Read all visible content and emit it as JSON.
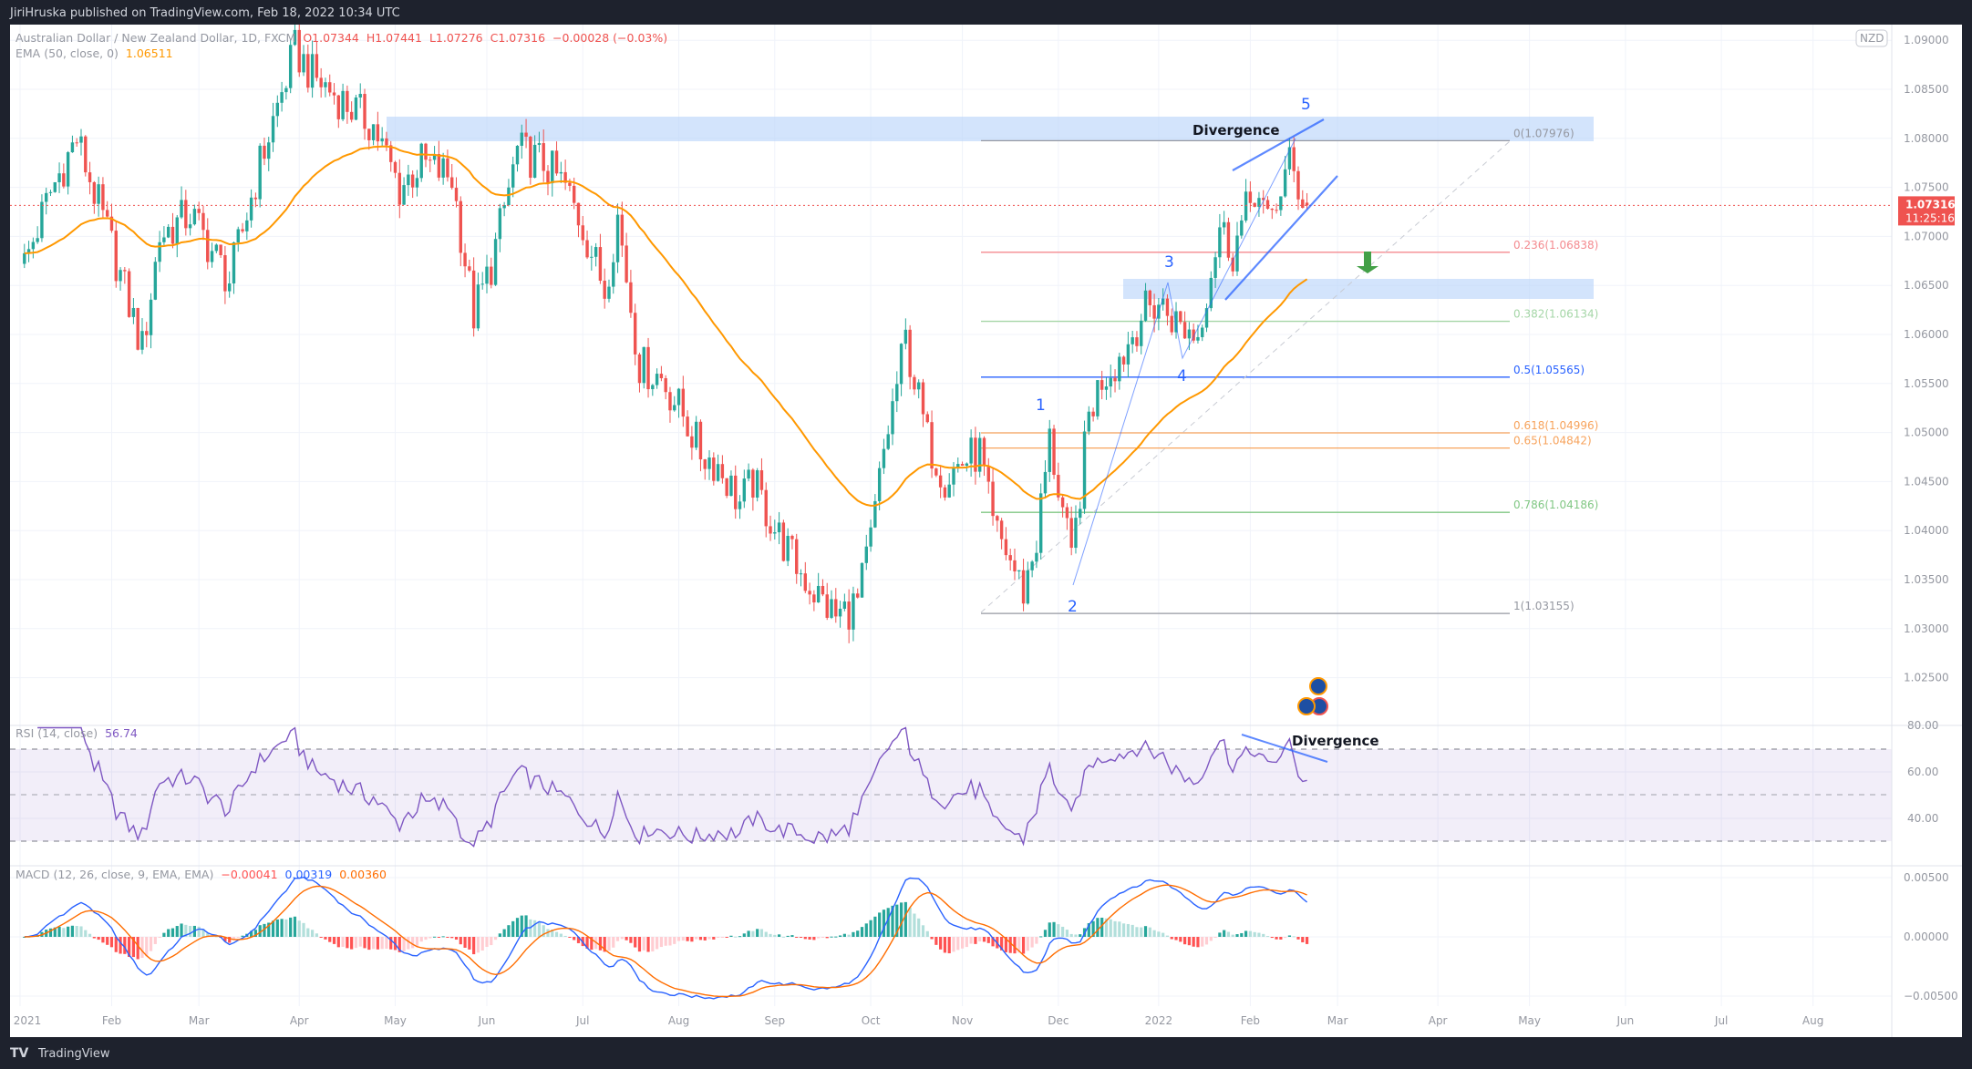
{
  "header": {
    "published": "JiriHruska published on TradingView.com, Feb 18, 2022 10:34 UTC"
  },
  "legend": {
    "symbol": "Australian Dollar / New Zealand Dollar, 1D, FXCM",
    "open": "O1.07344",
    "high": "H1.07441",
    "low": "L1.07276",
    "close": "C1.07316",
    "change": "−0.00028 (−0.03%)",
    "ema_label": "EMA (50, close, 0)",
    "ema_value": "1.06511"
  },
  "price_axis": {
    "currency": "NZD",
    "ticks": [
      "1.09000",
      "1.08500",
      "1.08000",
      "1.07500",
      "1.07000",
      "1.06500",
      "1.06000",
      "1.05500",
      "1.05000",
      "1.04500",
      "1.04000",
      "1.03500",
      "1.03000",
      "1.02500"
    ],
    "last_price": "1.07316",
    "countdown": "11:25:16"
  },
  "rsi": {
    "label": "RSI (14, close)",
    "value": "56.74",
    "ticks": [
      "80.00",
      "60.00",
      "40.00"
    ]
  },
  "macd": {
    "label": "MACD (12, 26, close, 9, EMA, EMA)",
    "hist": "−0.00041",
    "macd": "0.00319",
    "signal": "0.00360",
    "ticks": [
      "0.00500",
      "0.00000",
      "−0.00500"
    ]
  },
  "time_axis": [
    {
      "label": "2021",
      "date": "2021-01-01"
    },
    {
      "label": "Feb",
      "date": "2021-02-01"
    },
    {
      "label": "Mar",
      "date": "2021-03-01"
    },
    {
      "label": "Apr",
      "date": "2021-04-01"
    },
    {
      "label": "May",
      "date": "2021-05-03"
    },
    {
      "label": "Jun",
      "date": "2021-06-01"
    },
    {
      "label": "Jul",
      "date": "2021-07-01"
    },
    {
      "label": "Aug",
      "date": "2021-08-02"
    },
    {
      "label": "Sep",
      "date": "2021-09-01"
    },
    {
      "label": "Oct",
      "date": "2021-10-01"
    },
    {
      "label": "Nov",
      "date": "2021-11-01"
    },
    {
      "label": "Dec",
      "date": "2021-12-01"
    },
    {
      "label": "2022",
      "date": "2022-01-03"
    },
    {
      "label": "Feb",
      "date": "2022-02-01"
    },
    {
      "label": "Mar",
      "date": "2022-03-01"
    },
    {
      "label": "Apr",
      "date": "2022-04-01"
    },
    {
      "label": "May",
      "date": "2022-05-02"
    },
    {
      "label": "Jun",
      "date": "2022-06-01"
    },
    {
      "label": "Jul",
      "date": "2022-07-01"
    },
    {
      "label": "Aug",
      "date": "2022-08-01"
    }
  ],
  "fib_levels": [
    {
      "label": "0(1.07976)",
      "price": 1.07976,
      "color": "#9598a1"
    },
    {
      "label": "0.236(1.06838)",
      "price": 1.06838,
      "color": "#f48a8f"
    },
    {
      "label": "0.382(1.06134)",
      "price": 1.06134,
      "color": "#a5d6a7"
    },
    {
      "label": "0.5(1.05565)",
      "price": 1.05565,
      "color": "#2962ff"
    },
    {
      "label": "0.618(1.04996)",
      "price": 1.04996,
      "color": "#f7a35c"
    },
    {
      "label": "0.65(1.04842)",
      "price": 1.04842,
      "color": "#f7a35c"
    },
    {
      "label": "0.786(1.04186)",
      "price": 1.04186,
      "color": "#81c784"
    },
    {
      "label": "1(1.03155)",
      "price": 1.03155,
      "color": "#9598a1"
    }
  ],
  "annotations": {
    "divergence_main": "Divergence",
    "divergence_rsi": "Divergence",
    "waves": [
      "1",
      "2",
      "3",
      "4",
      "5"
    ]
  },
  "footer": {
    "brand": "TradingView"
  },
  "colors": {
    "up": "#26a69a",
    "down": "#ef5350",
    "ema": "#ff9800",
    "rsi": "#7e57c2",
    "macd": "#2962ff",
    "signal": "#ff6d00",
    "zone": "#bbd5fb"
  },
  "chart_data": {
    "type": "candlestick",
    "symbol": "AUDNZD",
    "interval": "1D",
    "ylim": [
      1.025,
      1.091
    ],
    "close_path": [
      [
        "2021-01-04",
        1.0672
      ],
      [
        "2021-01-12",
        1.0745
      ],
      [
        "2021-01-20",
        1.08
      ],
      [
        "2021-02-01",
        1.069
      ],
      [
        "2021-02-10",
        1.0585
      ],
      [
        "2021-02-16",
        1.07
      ],
      [
        "2021-02-25",
        1.0723
      ],
      [
        "2021-03-10",
        1.0655
      ],
      [
        "2021-03-19",
        1.0774
      ],
      [
        "2021-03-31",
        1.089
      ],
      [
        "2021-04-06",
        1.0864
      ],
      [
        "2021-04-15",
        1.0838
      ],
      [
        "2021-04-26",
        1.0813
      ],
      [
        "2021-05-04",
        1.0749
      ],
      [
        "2021-05-11",
        1.0775
      ],
      [
        "2021-05-20",
        1.076
      ],
      [
        "2021-05-27",
        1.062
      ],
      [
        "2021-06-02",
        1.067
      ],
      [
        "2021-06-10",
        1.0787
      ],
      [
        "2021-06-18",
        1.0775
      ],
      [
        "2021-06-25",
        1.075
      ],
      [
        "2021-07-01",
        1.071
      ],
      [
        "2021-07-08",
        1.0646
      ],
      [
        "2021-07-13",
        1.072
      ],
      [
        "2021-07-20",
        1.0569
      ],
      [
        "2021-07-27",
        1.0556
      ],
      [
        "2021-08-03",
        1.0518
      ],
      [
        "2021-08-09",
        1.048
      ],
      [
        "2021-08-13",
        1.0467
      ],
      [
        "2021-08-20",
        1.0428
      ],
      [
        "2021-08-25",
        1.045
      ],
      [
        "2021-09-01",
        1.0402
      ],
      [
        "2021-09-08",
        1.0364
      ],
      [
        "2021-09-14",
        1.0338
      ],
      [
        "2021-09-21",
        1.0312
      ],
      [
        "2021-09-28",
        1.0326
      ],
      [
        "2021-10-01",
        1.039
      ],
      [
        "2021-10-06",
        1.048
      ],
      [
        "2021-10-13",
        1.0595
      ],
      [
        "2021-10-20",
        1.0492
      ],
      [
        "2021-10-26",
        1.0454
      ],
      [
        "2021-11-01",
        1.047
      ],
      [
        "2021-11-05",
        1.048
      ],
      [
        "2021-11-10",
        1.0402
      ],
      [
        "2021-11-15",
        1.038
      ],
      [
        "2021-11-19",
        1.0338
      ],
      [
        "2021-11-24",
        1.039
      ],
      [
        "2021-11-29",
        1.0492
      ],
      [
        "2021-12-02",
        1.042
      ],
      [
        "2021-12-06",
        1.0364
      ],
      [
        "2021-12-10",
        1.0518
      ],
      [
        "2021-12-15",
        1.0556
      ],
      [
        "2021-12-22",
        1.0582
      ],
      [
        "2021-12-28",
        1.062
      ],
      [
        "2022-01-03",
        1.0633
      ],
      [
        "2022-01-10",
        1.0608
      ],
      [
        "2022-01-14",
        1.06
      ],
      [
        "2022-01-18",
        1.0646
      ],
      [
        "2022-01-21",
        1.071
      ],
      [
        "2022-01-26",
        1.0685
      ],
      [
        "2022-02-02",
        1.0749
      ],
      [
        "2022-02-07",
        1.071
      ],
      [
        "2022-02-10",
        1.0749
      ],
      [
        "2022-02-14",
        1.0774
      ],
      [
        "2022-02-16",
        1.075
      ],
      [
        "2022-02-18",
        1.07316
      ]
    ],
    "last_bar": {
      "date": "2022-02-18",
      "open": 1.07344,
      "high": 1.07441,
      "low": 1.07276,
      "close": 1.07316
    },
    "indicators": [
      "EMA 50",
      "RSI 14",
      "MACD 12 26 9"
    ],
    "rsi_bands": [
      70,
      50,
      30
    ],
    "grid": true
  }
}
